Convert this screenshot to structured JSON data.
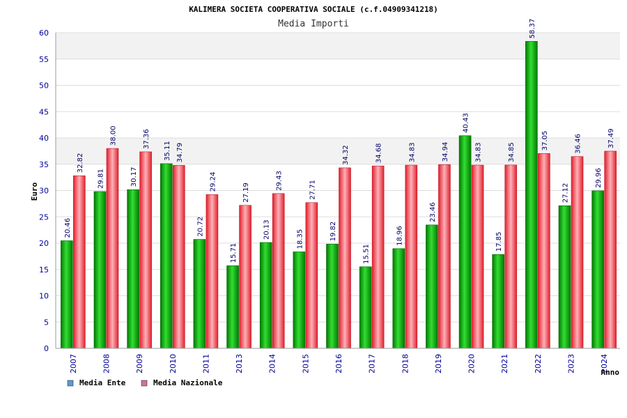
{
  "chart_data": {
    "type": "bar",
    "title": "KALIMERA SOCIETA COOPERATIVA SOCIALE (c.f.04909341218)",
    "subtitle": "Media Importi",
    "xlabel": "Anno",
    "ylabel": "Euro",
    "ylim": [
      0,
      60
    ],
    "ystep": 5,
    "categories": [
      "2007",
      "2008",
      "2009",
      "2010",
      "2011",
      "2013",
      "2014",
      "2015",
      "2016",
      "2017",
      "2018",
      "2019",
      "2020",
      "2021",
      "2022",
      "2023",
      "2024"
    ],
    "series": [
      {
        "name": "Media Ente",
        "values": [
          20.46,
          29.81,
          30.17,
          35.11,
          20.72,
          15.71,
          20.13,
          18.35,
          19.82,
          15.51,
          18.96,
          23.46,
          40.43,
          17.85,
          58.37,
          27.12,
          29.96
        ],
        "labels": [
          "20.46",
          "29.81",
          "30.17",
          "35.11",
          "20.72",
          "15.71",
          "20.13",
          "18.35",
          "19.82",
          "15.51",
          "18.96",
          "23.46",
          "40.43",
          "17.85",
          "58.37",
          "27.12",
          "29.96"
        ],
        "color": "#00a000",
        "legend_color": "#5b9bd5"
      },
      {
        "name": "Media Nazionale",
        "values": [
          32.82,
          38.0,
          37.36,
          34.79,
          29.24,
          27.19,
          29.43,
          27.71,
          34.32,
          34.68,
          34.83,
          34.94,
          34.83,
          34.85,
          37.05,
          36.46,
          37.49
        ],
        "labels": [
          "32.82",
          "38.00",
          "37.36",
          "34.79",
          "29.24",
          "27.19",
          "29.43",
          "27.71",
          "34.32",
          "34.68",
          "34.83",
          "34.94",
          "34.83",
          "34.85",
          "37.05",
          "36.46",
          "37.49"
        ],
        "color": "#e83040",
        "legend_color": "#d070a0"
      }
    ],
    "grid": true,
    "legend_position": "bottom-left"
  }
}
